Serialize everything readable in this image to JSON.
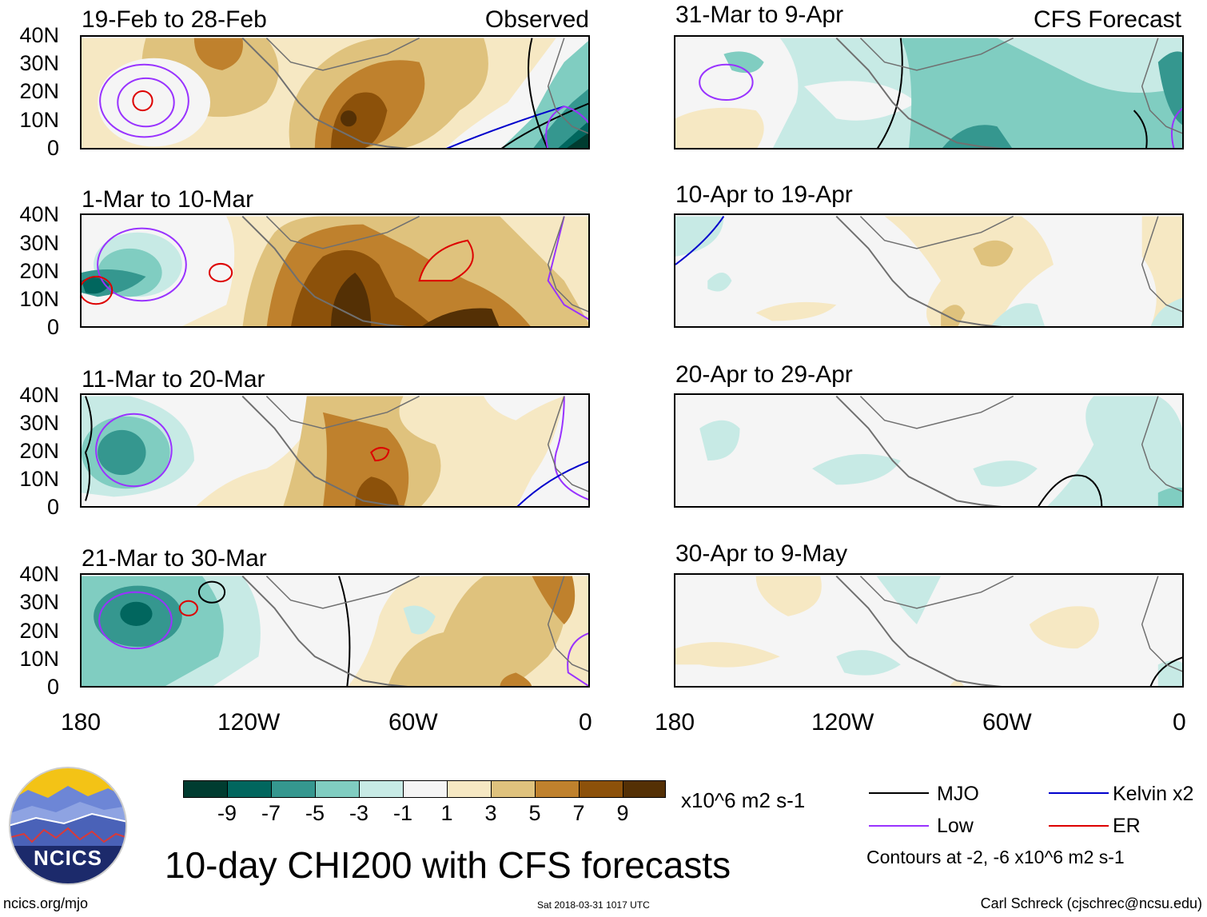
{
  "title": "10-day CHI200 with CFS forecasts",
  "headers": {
    "observed": "Observed",
    "forecast": "CFS Forecast"
  },
  "panels_observed": [
    {
      "period": "19-Feb to 28-Feb"
    },
    {
      "period": "1-Mar to 10-Mar"
    },
    {
      "period": "11-Mar to 20-Mar"
    },
    {
      "period": "21-Mar to 30-Mar"
    }
  ],
  "panels_forecast": [
    {
      "period": "31-Mar to 9-Apr"
    },
    {
      "period": "10-Apr to 19-Apr"
    },
    {
      "period": "20-Apr to 29-Apr"
    },
    {
      "period": "30-Apr to 9-May"
    }
  ],
  "lat_labels": [
    "40N",
    "30N",
    "20N",
    "10N",
    "0"
  ],
  "lon_labels": [
    "180",
    "120W",
    "60W",
    "0"
  ],
  "colorbar": {
    "unit": "x10^6 m2 s-1",
    "ticks": [
      "-9",
      "-7",
      "-5",
      "-3",
      "-1",
      "1",
      "3",
      "5",
      "7",
      "9"
    ],
    "colors": [
      "#003c30",
      "#01665e",
      "#35978f",
      "#80cdc1",
      "#c7eae5",
      "#f5f5f5",
      "#f6e8c3",
      "#dfc27d",
      "#bf812d",
      "#8c510a",
      "#543005"
    ]
  },
  "legend": {
    "items": [
      {
        "label": "MJO",
        "color": "#000000"
      },
      {
        "label": "Kelvin x2",
        "color": "#0000cc"
      },
      {
        "label": "Low",
        "color": "#9933ff"
      },
      {
        "label": "ER",
        "color": "#dd0000"
      }
    ],
    "contours_note": "Contours at -2, -6 x10^6 m2 s-1"
  },
  "footer": {
    "site": "ncics.org/mjo",
    "timestamp": "Sat 2018-03-31 1017 UTC",
    "author": "Carl Schreck (cjschrec@ncsu.edu)"
  },
  "logo": {
    "text": "NCICS"
  }
}
